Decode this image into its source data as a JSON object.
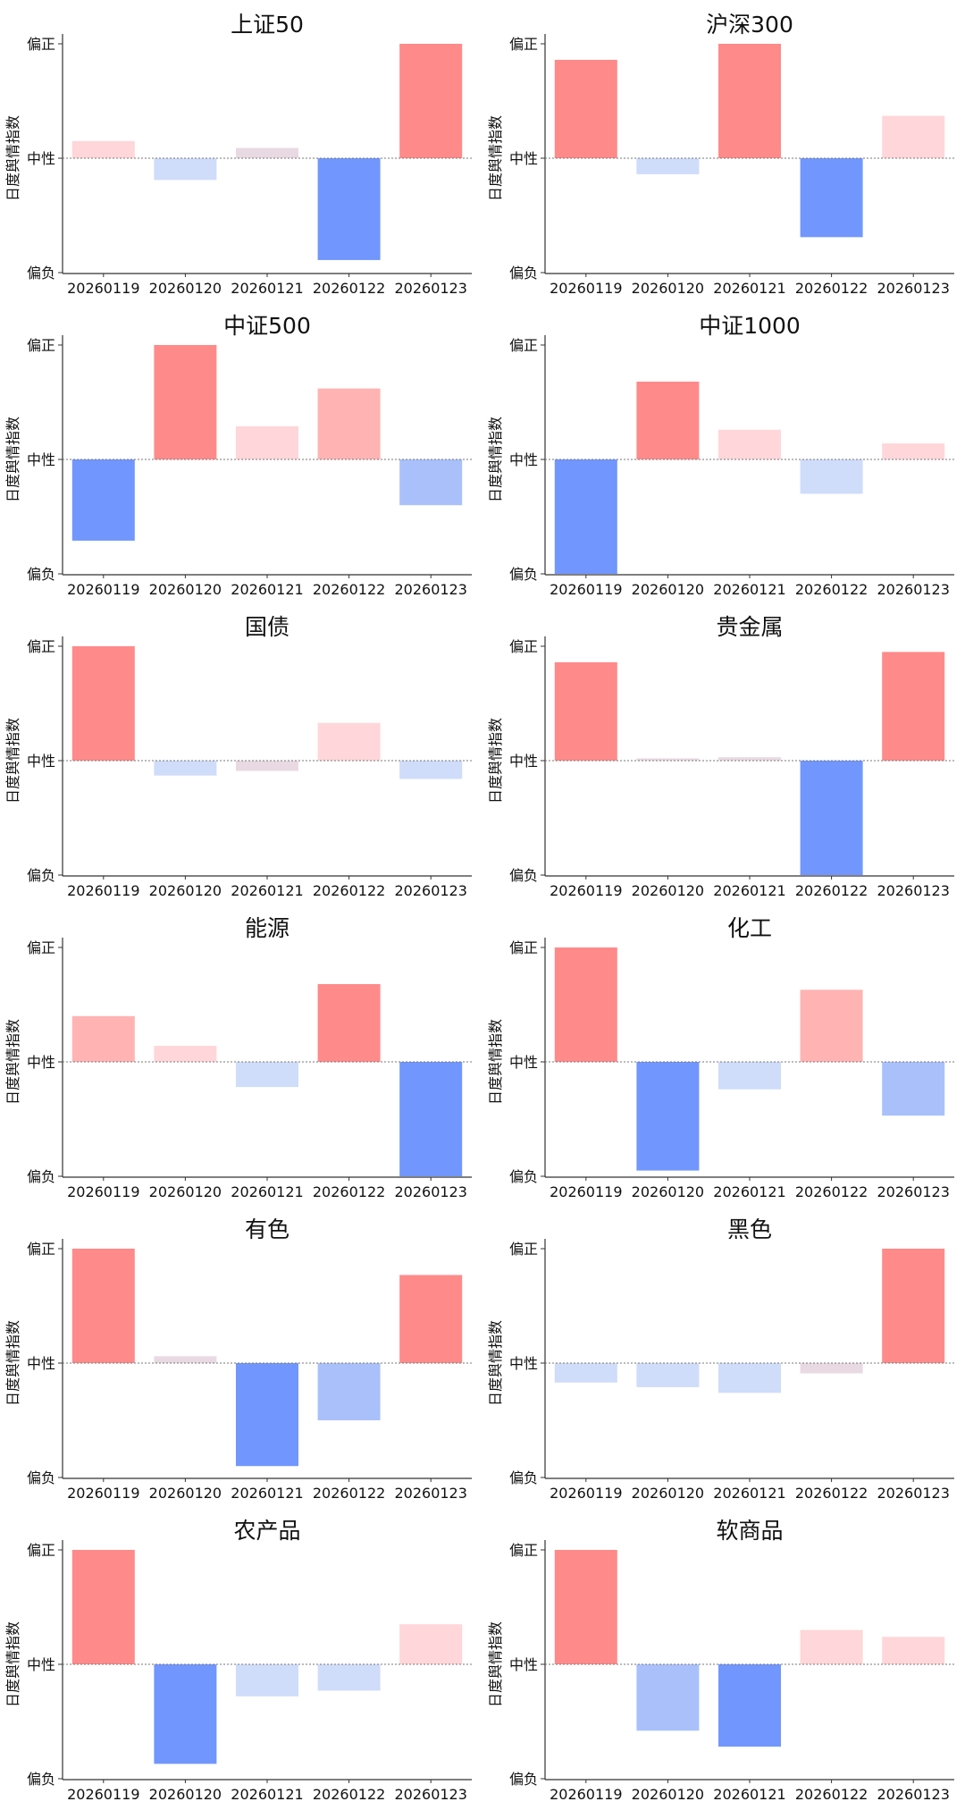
{
  "ylabel": "日度舆情指数",
  "yticks": [
    "偏正",
    "中性",
    "偏负"
  ],
  "categories": [
    "20260119",
    "20260120",
    "20260121",
    "20260122",
    "20260123"
  ],
  "colors": {
    "positive_strong": "#ff8a8a",
    "positive_mid": "#ffb3b3",
    "positive_light": "#ffd6d9",
    "neutral_light": "#e9d9e2",
    "negative_light": "#cfdcfa",
    "negative_mid": "#a9c0fb",
    "negative_strong": "#7196fd",
    "axis": "#333333",
    "zero_line": "#777777"
  },
  "chart_data": [
    {
      "type": "bar",
      "title": "上证50",
      "ylabel": "日度舆情指数",
      "ylim": [
        -1,
        1
      ],
      "categories": [
        "20260119",
        "20260120",
        "20260121",
        "20260122",
        "20260123"
      ],
      "values": [
        0.15,
        -0.19,
        0.09,
        -0.89,
        1.0
      ]
    },
    {
      "type": "bar",
      "title": "沪深300",
      "ylabel": "日度舆情指数",
      "ylim": [
        -1,
        1
      ],
      "categories": [
        "20260119",
        "20260120",
        "20260121",
        "20260122",
        "20260123"
      ],
      "values": [
        0.86,
        -0.14,
        1.0,
        -0.69,
        0.37
      ]
    },
    {
      "type": "bar",
      "title": "中证500",
      "ylabel": "日度舆情指数",
      "ylim": [
        -1,
        1
      ],
      "categories": [
        "20260119",
        "20260120",
        "20260121",
        "20260122",
        "20260123"
      ],
      "values": [
        -0.71,
        1.0,
        0.29,
        0.62,
        -0.4
      ]
    },
    {
      "type": "bar",
      "title": "中证1000",
      "ylabel": "日度舆情指数",
      "ylim": [
        -1,
        1
      ],
      "categories": [
        "20260119",
        "20260120",
        "20260121",
        "20260122",
        "20260123"
      ],
      "values": [
        -1.0,
        0.68,
        0.26,
        -0.3,
        0.14
      ]
    },
    {
      "type": "bar",
      "title": "国债",
      "ylabel": "日度舆情指数",
      "ylim": [
        -1,
        1
      ],
      "categories": [
        "20260119",
        "20260120",
        "20260121",
        "20260122",
        "20260123"
      ],
      "values": [
        1.0,
        -0.13,
        -0.09,
        0.33,
        -0.16
      ]
    },
    {
      "type": "bar",
      "title": "贵金属",
      "ylabel": "日度舆情指数",
      "ylim": [
        -1,
        1
      ],
      "categories": [
        "20260119",
        "20260120",
        "20260121",
        "20260122",
        "20260123"
      ],
      "values": [
        0.86,
        0.02,
        0.03,
        -1.0,
        0.95
      ]
    },
    {
      "type": "bar",
      "title": "能源",
      "ylabel": "日度舆情指数",
      "ylim": [
        -1,
        1
      ],
      "categories": [
        "20260119",
        "20260120",
        "20260121",
        "20260122",
        "20260123"
      ],
      "values": [
        0.4,
        0.14,
        -0.22,
        0.68,
        -1.0
      ]
    },
    {
      "type": "bar",
      "title": "化工",
      "ylabel": "日度舆情指数",
      "ylim": [
        -1,
        1
      ],
      "categories": [
        "20260119",
        "20260120",
        "20260121",
        "20260122",
        "20260123"
      ],
      "values": [
        1.0,
        -0.95,
        -0.24,
        0.63,
        -0.47
      ]
    },
    {
      "type": "bar",
      "title": "有色",
      "ylabel": "日度舆情指数",
      "ylim": [
        -1,
        1
      ],
      "categories": [
        "20260119",
        "20260120",
        "20260121",
        "20260122",
        "20260123"
      ],
      "values": [
        1.0,
        0.06,
        -0.9,
        -0.5,
        0.77
      ]
    },
    {
      "type": "bar",
      "title": "黑色",
      "ylabel": "日度舆情指数",
      "ylim": [
        -1,
        1
      ],
      "categories": [
        "20260119",
        "20260120",
        "20260121",
        "20260122",
        "20260123"
      ],
      "values": [
        -0.17,
        -0.21,
        -0.26,
        -0.09,
        1.0
      ]
    },
    {
      "type": "bar",
      "title": "农产品",
      "ylabel": "日度舆情指数",
      "ylim": [
        -1,
        1
      ],
      "categories": [
        "20260119",
        "20260120",
        "20260121",
        "20260122",
        "20260123"
      ],
      "values": [
        1.0,
        -0.87,
        -0.28,
        -0.23,
        0.35
      ]
    },
    {
      "type": "bar",
      "title": "软商品",
      "ylabel": "日度舆情指数",
      "ylim": [
        -1,
        1
      ],
      "categories": [
        "20260119",
        "20260120",
        "20260121",
        "20260122",
        "20260123"
      ],
      "values": [
        1.0,
        -0.58,
        -0.72,
        0.3,
        0.24
      ]
    }
  ]
}
